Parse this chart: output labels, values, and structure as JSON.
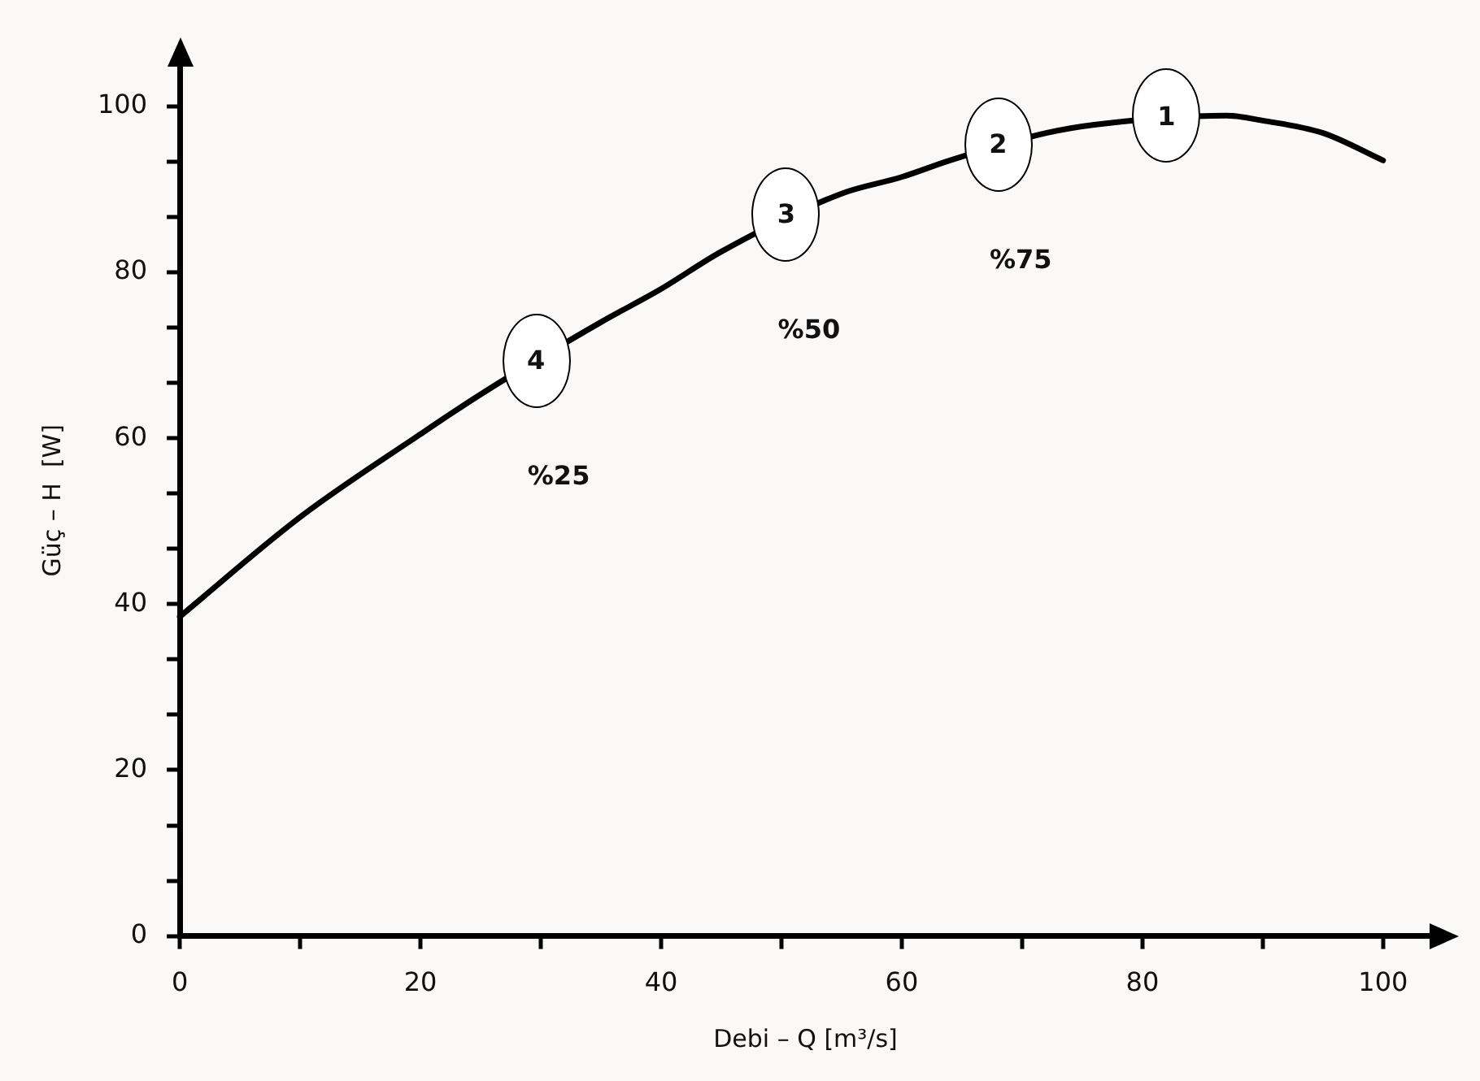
{
  "chart_data": {
    "type": "line",
    "xlabel": "Debi – Q [m³/s]",
    "ylabel": "Güç – H  [W]",
    "x": [
      0,
      10,
      20,
      25,
      35,
      40,
      45,
      55,
      60,
      64,
      72,
      76,
      87,
      90,
      95,
      100
    ],
    "series": [
      {
        "color": "#000000",
        "values": [
          38.5,
          50.5,
          60.5,
          65.3,
          74,
          78,
          82.5,
          89.5,
          91.5,
          93.5,
          96.8,
          97.8,
          98.9,
          98.3,
          96.8,
          93.5
        ]
      }
    ],
    "xlim": [
      0,
      104
    ],
    "ylim": [
      0,
      105
    ],
    "xticks": [
      0,
      {
        "value": 10,
        "label": null
      },
      20,
      {
        "value": 30,
        "label": null
      },
      40,
      {
        "value": 50,
        "label": null
      },
      60,
      {
        "value": 70,
        "label": null
      },
      80,
      {
        "value": 90,
        "label": null
      },
      100
    ],
    "yticks": [
      0,
      {
        "value": 6.67,
        "label": null
      },
      {
        "value": 13.33,
        "label": null
      },
      20,
      {
        "value": 26.67,
        "label": null
      },
      {
        "value": 33.33,
        "label": null
      },
      40,
      {
        "value": 46.67,
        "label": null
      },
      {
        "value": 53.33,
        "label": null
      },
      60,
      {
        "value": 66.67,
        "label": null
      },
      {
        "value": 73.33,
        "label": null
      },
      80,
      {
        "value": 86.67,
        "label": null
      },
      {
        "value": 93.33,
        "label": null
      },
      100
    ],
    "annotations": [
      {
        "text": "1",
        "x": 82,
        "y": 98.9
      },
      {
        "text": "2",
        "x": 68,
        "y": 95.4
      },
      {
        "text": "3",
        "x": 50.4,
        "y": 87
      },
      {
        "text": "4",
        "x": 29.6,
        "y": 69.4
      },
      "%25",
      "%50",
      "%75"
    ],
    "grid": false,
    "legend": false,
    "marker": "none",
    "line_style": "solid"
  }
}
